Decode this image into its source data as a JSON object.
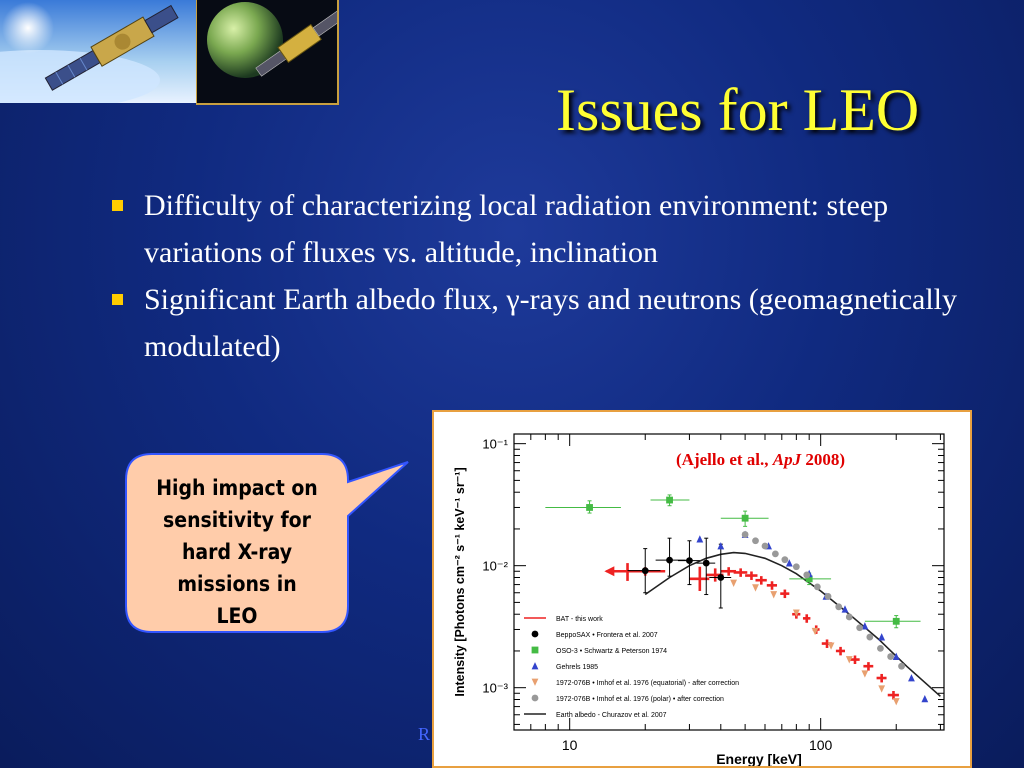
{
  "slide": {
    "title": "Issues for LEO",
    "bullets": [
      "Difficulty of characterizing local radiation environment: steep variations of fluxes vs. altitude, inclination",
      "Significant Earth albedo flux, γ-rays and neutrons (geomagnetically modulated)"
    ],
    "callout": [
      "High impact on",
      "sensitivity for",
      "hard X-ray",
      "missions in",
      "LEO"
    ],
    "footer_fragment": "R",
    "colors": {
      "title": "#ffff33",
      "bullet": "#ffcc00",
      "callout_fill": "#ffccaa",
      "callout_border": "#3355ff"
    }
  },
  "citation": {
    "pre": "(Ajello et al., ",
    "journal": "ApJ",
    "post": " 2008)"
  },
  "chart_data": {
    "type": "scatter",
    "xlabel": "Energy [keV]",
    "ylabel": "Intensity [Photons cm⁻² s⁻¹ keV⁻¹ sr⁻¹]",
    "xscale": "log",
    "yscale": "log",
    "xlim": [
      6,
      310
    ],
    "ylim": [
      0.00045,
      0.12
    ],
    "x_ticks": [
      {
        "v": 10,
        "label": "10"
      },
      {
        "v": 100,
        "label": "100"
      }
    ],
    "y_ticks": [
      {
        "v": 0.1,
        "label": "10⁻¹"
      },
      {
        "v": 0.01,
        "label": "10⁻²"
      },
      {
        "v": 0.001,
        "label": "10⁻³"
      }
    ],
    "legend_position": "bottom-left",
    "series": [
      {
        "name": "BAT - this work",
        "marker": "cross",
        "color": "#ee2222",
        "points": [
          {
            "x": 17,
            "y": 0.009,
            "xl": 14,
            "xh": 24,
            "yl": 0.0075,
            "yh": 0.0105,
            "ul": true
          },
          {
            "x": 20,
            "y": 0.009,
            "xl": 17,
            "xh": 24
          },
          {
            "x": 33,
            "y": 0.0078,
            "xl": 30,
            "xh": 36,
            "yl": 0.0062,
            "yh": 0.0098
          },
          {
            "x": 38,
            "y": 0.0084,
            "xl": 35,
            "xh": 41,
            "yl": 0.0074,
            "yh": 0.0095
          },
          {
            "x": 43,
            "y": 0.009,
            "xl": 40,
            "xh": 46
          },
          {
            "x": 48,
            "y": 0.0088,
            "xl": 45,
            "xh": 51
          },
          {
            "x": 53,
            "y": 0.0083,
            "xl": 50,
            "xh": 56
          },
          {
            "x": 58,
            "y": 0.0076,
            "xl": 55,
            "xh": 61
          },
          {
            "x": 64,
            "y": 0.0069,
            "xl": 61,
            "xh": 67
          },
          {
            "x": 72,
            "y": 0.0059,
            "xl": 69,
            "xh": 75
          },
          {
            "x": 80,
            "y": 0.004,
            "xl": 77,
            "xh": 83
          },
          {
            "x": 88,
            "y": 0.0037,
            "xl": 85,
            "xh": 91
          },
          {
            "x": 96,
            "y": 0.003,
            "xl": 93,
            "xh": 99
          },
          {
            "x": 106,
            "y": 0.0023,
            "xl": 101,
            "xh": 111
          },
          {
            "x": 120,
            "y": 0.002,
            "xl": 115,
            "xh": 125
          },
          {
            "x": 137,
            "y": 0.0017,
            "xl": 131,
            "xh": 143
          },
          {
            "x": 155,
            "y": 0.0015,
            "xl": 148,
            "xh": 162
          },
          {
            "x": 175,
            "y": 0.0012,
            "xl": 167,
            "xh": 183
          },
          {
            "x": 195,
            "y": 0.00087,
            "xl": 185,
            "xh": 205
          }
        ]
      },
      {
        "name": "BeppoSAX • Frontera et al. 2007",
        "marker": "circle",
        "color": "#000000",
        "points": [
          {
            "x": 20,
            "y": 0.0091,
            "xl": 17,
            "xh": 23,
            "yl": 0.006,
            "yh": 0.0138
          },
          {
            "x": 25,
            "y": 0.0111,
            "xl": 22,
            "xh": 29,
            "yl": 0.0082,
            "yh": 0.0168
          },
          {
            "x": 30,
            "y": 0.011,
            "xl": 27,
            "xh": 33,
            "yl": 0.007,
            "yh": 0.016
          },
          {
            "x": 35,
            "y": 0.0105,
            "xl": 32,
            "xh": 38,
            "yl": 0.0058,
            "yh": 0.0168
          },
          {
            "x": 40,
            "y": 0.008,
            "xl": 36,
            "xh": 44,
            "yl": 0.0045,
            "yh": 0.015
          }
        ]
      },
      {
        "name": "OSO-3 • Schwartz & Peterson 1974",
        "marker": "square",
        "color": "#44bb44",
        "points": [
          {
            "x": 12,
            "y": 0.03,
            "xl": 8,
            "xh": 16,
            "yl": 0.027,
            "yh": 0.034
          },
          {
            "x": 25,
            "y": 0.0345,
            "xl": 21,
            "xh": 30,
            "yl": 0.031,
            "yh": 0.038
          },
          {
            "x": 50,
            "y": 0.0245,
            "xl": 40,
            "xh": 62,
            "yl": 0.021,
            "yh": 0.028
          },
          {
            "x": 90,
            "y": 0.0078,
            "xl": 75,
            "xh": 110,
            "yl": 0.007,
            "yh": 0.0087
          },
          {
            "x": 200,
            "y": 0.0035,
            "xl": 150,
            "xh": 250,
            "yl": 0.0031,
            "yh": 0.0039
          }
        ]
      },
      {
        "name": "Gehrels 1985",
        "marker": "triangle-up",
        "color": "#3344cc",
        "points": [
          {
            "x": 33,
            "y": 0.0165
          },
          {
            "x": 40,
            "y": 0.0145
          },
          {
            "x": 50,
            "y": 0.018
          },
          {
            "x": 62,
            "y": 0.0145
          },
          {
            "x": 75,
            "y": 0.0105
          },
          {
            "x": 90,
            "y": 0.0086
          },
          {
            "x": 105,
            "y": 0.0056
          },
          {
            "x": 125,
            "y": 0.0044
          },
          {
            "x": 150,
            "y": 0.0032
          },
          {
            "x": 175,
            "y": 0.0026
          },
          {
            "x": 200,
            "y": 0.0018
          },
          {
            "x": 230,
            "y": 0.0012
          },
          {
            "x": 260,
            "y": 0.00081
          }
        ]
      },
      {
        "name": "1972-076B • Imhof et al. 1976 (equatorial) - after correction",
        "marker": "triangle-down",
        "color": "#e8a070",
        "points": [
          {
            "x": 45,
            "y": 0.0072
          },
          {
            "x": 55,
            "y": 0.0066
          },
          {
            "x": 65,
            "y": 0.0058
          },
          {
            "x": 80,
            "y": 0.0041
          },
          {
            "x": 95,
            "y": 0.0029
          },
          {
            "x": 110,
            "y": 0.0022
          },
          {
            "x": 130,
            "y": 0.0017
          },
          {
            "x": 150,
            "y": 0.0013
          },
          {
            "x": 175,
            "y": 0.00098
          },
          {
            "x": 200,
            "y": 0.00077
          }
        ]
      },
      {
        "name": "1972-076B • Imhof et al. 1976 (polar) • after correction",
        "marker": "circle",
        "color": "#999999",
        "points": [
          {
            "x": 50,
            "y": 0.018
          },
          {
            "x": 55,
            "y": 0.016
          },
          {
            "x": 60,
            "y": 0.0145
          },
          {
            "x": 66,
            "y": 0.0125
          },
          {
            "x": 72,
            "y": 0.0112
          },
          {
            "x": 80,
            "y": 0.0098
          },
          {
            "x": 88,
            "y": 0.0084
          },
          {
            "x": 97,
            "y": 0.0067
          },
          {
            "x": 107,
            "y": 0.0056
          },
          {
            "x": 118,
            "y": 0.0046
          },
          {
            "x": 130,
            "y": 0.0038
          },
          {
            "x": 143,
            "y": 0.0031
          },
          {
            "x": 157,
            "y": 0.0026
          },
          {
            "x": 173,
            "y": 0.0021
          },
          {
            "x": 190,
            "y": 0.0018
          },
          {
            "x": 210,
            "y": 0.0015
          }
        ]
      },
      {
        "name": "Earth albedo - Churazov et al. 2007",
        "marker": "line",
        "color": "#222222",
        "points": [
          {
            "x": 20,
            "y": 0.0058
          },
          {
            "x": 25,
            "y": 0.008
          },
          {
            "x": 30,
            "y": 0.01
          },
          {
            "x": 35,
            "y": 0.0115
          },
          {
            "x": 40,
            "y": 0.0124
          },
          {
            "x": 45,
            "y": 0.0128
          },
          {
            "x": 50,
            "y": 0.0126
          },
          {
            "x": 60,
            "y": 0.0115
          },
          {
            "x": 70,
            "y": 0.01
          },
          {
            "x": 80,
            "y": 0.0086
          },
          {
            "x": 100,
            "y": 0.0062
          },
          {
            "x": 130,
            "y": 0.004
          },
          {
            "x": 170,
            "y": 0.0025
          },
          {
            "x": 220,
            "y": 0.0015
          },
          {
            "x": 300,
            "y": 0.00085
          }
        ]
      }
    ]
  }
}
